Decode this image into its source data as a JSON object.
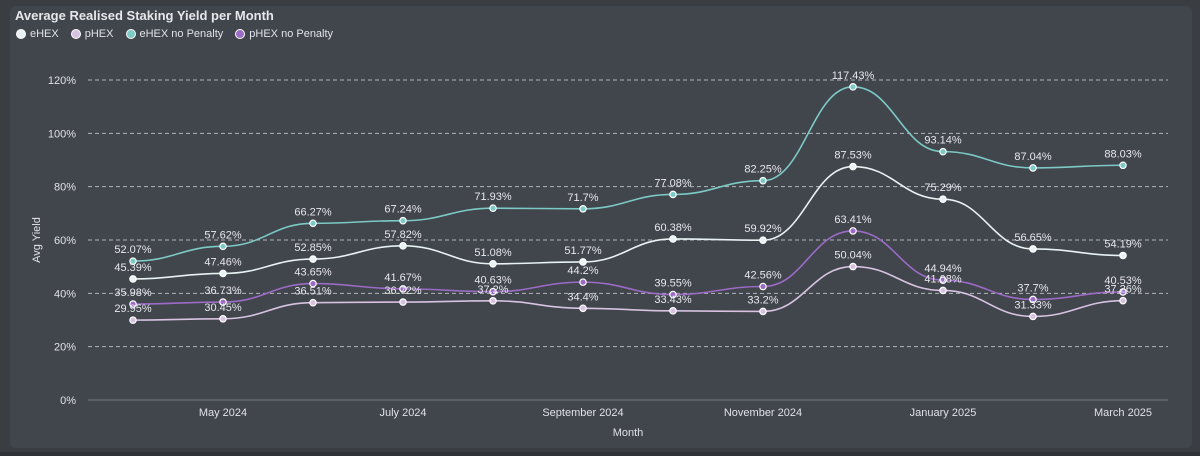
{
  "colors": {
    "background": "#3a3d42",
    "panel": "#41454c",
    "grid": "#d8dce2",
    "text": "#e6e8ec",
    "axis_text": "#dfe2e7"
  },
  "chart_data": {
    "type": "line",
    "title": "Average Realised Staking Yield per Month",
    "xlabel": "Month",
    "ylabel": "Avg Yield",
    "ylim": [
      0,
      120
    ],
    "yticks": [
      "0%",
      "20%",
      "40%",
      "60%",
      "80%",
      "100%",
      "120%"
    ],
    "x": [
      "2024-04",
      "2024-05",
      "2024-06",
      "2024-07",
      "2024-08",
      "2024-09",
      "2024-10",
      "2024-11",
      "2024-12",
      "2025-01",
      "2025-02",
      "2025-03"
    ],
    "xtick_labels": [
      {
        "index": 1,
        "label": "May 2024"
      },
      {
        "index": 3,
        "label": "July 2024"
      },
      {
        "index": 5,
        "label": "September 2024"
      },
      {
        "index": 7,
        "label": "November 2024"
      },
      {
        "index": 9,
        "label": "January 2025"
      },
      {
        "index": 11,
        "label": "March 2025"
      }
    ],
    "grid": true,
    "legend_position": "top-left",
    "series": [
      {
        "name": "eHEX",
        "color": "#e8f1f4",
        "values": [
          45.39,
          47.46,
          52.85,
          57.82,
          51.08,
          51.77,
          60.38,
          59.92,
          87.53,
          75.29,
          56.65,
          54.19
        ],
        "labels": [
          "45.39%",
          "47.46%",
          "52.85%",
          "57.82%",
          "51.08%",
          "51.77%",
          "60.38%",
          "59.92%",
          "87.53%",
          "75.29%",
          "56.65%",
          "54.19%"
        ]
      },
      {
        "name": "pHEX",
        "color": "#d7c2e2",
        "values": [
          29.95,
          30.45,
          36.51,
          36.72,
          37.2,
          34.4,
          33.43,
          33.2,
          50.04,
          41.08,
          31.33,
          37.26
        ],
        "labels": [
          "29.95%",
          "30.45%",
          "36.51%",
          "36.72%",
          "37.2%",
          "34.4%",
          "33.43%",
          "33.2%",
          "50.04%",
          "41.08%",
          "31.33%",
          "37.26%"
        ]
      },
      {
        "name": "eHEX no Penalty",
        "color": "#7cc9c6",
        "values": [
          52.07,
          57.62,
          66.27,
          67.24,
          71.93,
          71.7,
          77.08,
          82.25,
          117.43,
          93.14,
          87.04,
          88.03
        ],
        "labels": [
          "52.07%",
          "57.62%",
          "66.27%",
          "67.24%",
          "71.93%",
          "71.7%",
          "77.08%",
          "82.25%",
          "117.43%",
          "93.14%",
          "87.04%",
          "88.03%"
        ]
      },
      {
        "name": "pHEX no Penalty",
        "color": "#9b6bc6",
        "values": [
          35.98,
          36.73,
          43.65,
          41.67,
          40.63,
          44.2,
          39.55,
          42.56,
          63.41,
          44.94,
          37.7,
          40.53
        ],
        "labels": [
          "35.98%",
          "36.73%",
          "43.65%",
          "41.67%",
          "40.63%",
          "44.2%",
          "39.55%",
          "42.56%",
          "63.41%",
          "44.94%",
          "37.7%",
          "40.53%"
        ]
      }
    ]
  }
}
